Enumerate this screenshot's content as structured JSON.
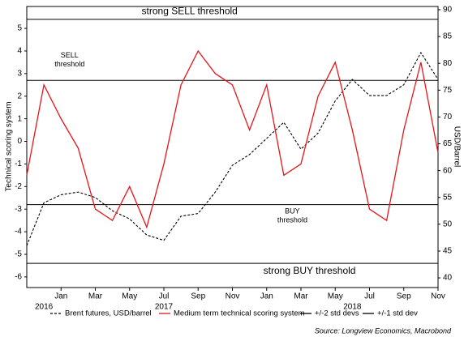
{
  "chart_data": {
    "type": "line",
    "x": [
      "2016-11",
      "2016-12",
      "2017-01",
      "2017-02",
      "2017-03",
      "2017-04",
      "2017-05",
      "2017-06",
      "2017-07",
      "2017-08",
      "2017-09",
      "2017-10",
      "2017-11",
      "2017-12",
      "2018-01",
      "2018-02",
      "2018-03",
      "2018-04",
      "2018-05",
      "2018-06",
      "2018-07",
      "2018-08",
      "2018-09",
      "2018-10",
      "2018-11"
    ],
    "xlim": [
      "2016-11",
      "2018-11"
    ],
    "xticks": [
      {
        "value": "2017-01",
        "label": "Jan"
      },
      {
        "value": "2017-03",
        "label": "Mar"
      },
      {
        "value": "2017-05",
        "label": "May"
      },
      {
        "value": "2017-07",
        "label": "Jul"
      },
      {
        "value": "2017-09",
        "label": "Sep"
      },
      {
        "value": "2017-11",
        "label": "Nov"
      },
      {
        "value": "2018-01",
        "label": "Jan"
      },
      {
        "value": "2018-03",
        "label": "Mar"
      },
      {
        "value": "2018-05",
        "label": "May"
      },
      {
        "value": "2018-07",
        "label": "Jul"
      },
      {
        "value": "2018-09",
        "label": "Sep"
      },
      {
        "value": "2018-11",
        "label": "Nov"
      }
    ],
    "year_labels": [
      {
        "value": "2016-12",
        "label": "2016"
      },
      {
        "value": "2017-07",
        "label": "2017"
      },
      {
        "value": "2018-06",
        "label": "2018"
      }
    ],
    "ylabel": "Technical scoring system",
    "y2label": "USD/Barrel",
    "ylim": [
      -6.47,
      5.97
    ],
    "yticks": [
      -6,
      -5,
      -4,
      -3,
      -2,
      -1,
      0,
      1,
      2,
      3,
      4,
      5
    ],
    "y2lim": [
      38.2,
      90.6
    ],
    "y2ticks": [
      40,
      45,
      50,
      55,
      60,
      65,
      70,
      75,
      80,
      85,
      90
    ],
    "series": [
      {
        "name": "Brent futures, USD/barrel",
        "color": "#000000",
        "dashed": true,
        "axis": "y2",
        "values": [
          46,
          54,
          55.5,
          56,
          55,
          52.5,
          51,
          48,
          47,
          51.5,
          52,
          56,
          61,
          63,
          66,
          69,
          64,
          67,
          73,
          77,
          74,
          74,
          76,
          82,
          77
        ]
      },
      {
        "name": "Medium term technical scoring system",
        "color": "#e8141b",
        "dashed": false,
        "axis": "y",
        "values": [
          -1.5,
          2.5,
          1.0,
          -0.3,
          -3.0,
          -3.5,
          -2.0,
          -3.8,
          -1.0,
          2.5,
          4.0,
          3.0,
          2.5,
          0.5,
          2.5,
          -1.5,
          -1.0,
          2.0,
          3.5,
          0.5,
          -3.0,
          -3.5,
          0.5,
          3.5,
          -0.5
        ]
      }
    ],
    "threshold_lines": [
      {
        "name": "+/-2 std devs",
        "color": "#000000",
        "values": [
          5.4,
          -5.4
        ]
      },
      {
        "name": "+/-1 std dev",
        "color": "#000000",
        "values": [
          2.7,
          -2.8
        ]
      }
    ],
    "annotations": [
      {
        "lines": [
          "strong SELL threshold"
        ],
        "color": "#8b1c24",
        "x": "2017-08",
        "y": 5.75
      },
      {
        "lines": [
          "SELL",
          "threshold"
        ],
        "color": "#000000",
        "x": "2017-01",
        "y": 3.6
      },
      {
        "lines": [
          "BUY",
          "threshold"
        ],
        "color": "#000000",
        "x": "2018-02",
        "y": -3.3
      },
      {
        "lines": [
          "strong BUY threshold"
        ],
        "color": "#8b1c24",
        "x": "2018-03",
        "y": -5.75
      }
    ],
    "source": "Source: Longview Economics, Macrobond"
  }
}
